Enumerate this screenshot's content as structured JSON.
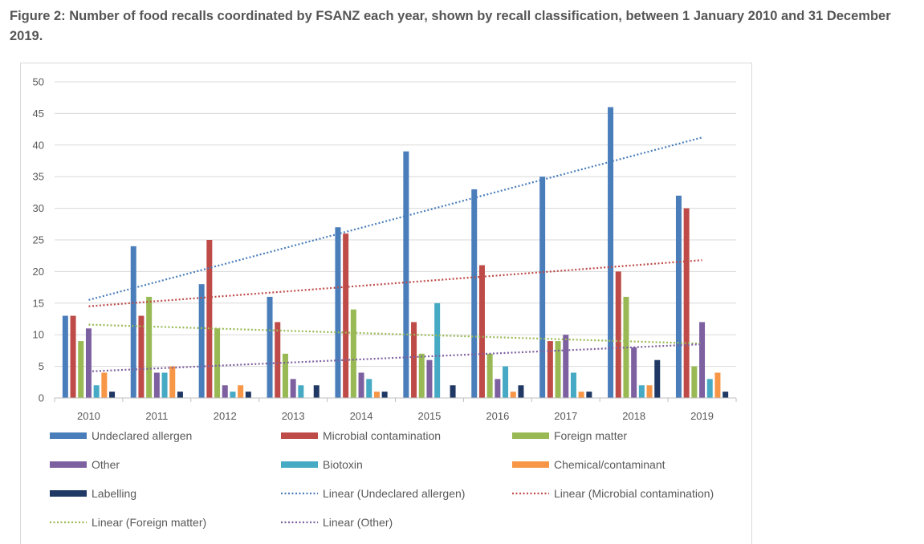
{
  "chart_data": {
    "type": "bar",
    "title": "Figure 2: Number of food recalls coordinated by FSANZ each year, shown by recall classification, between 1 January 2010 and 31 December 2019.",
    "xlabel": "",
    "ylabel": "",
    "ylim": [
      0,
      50
    ],
    "yticks": [
      0,
      5,
      10,
      15,
      20,
      25,
      30,
      35,
      40,
      45,
      50
    ],
    "grid": true,
    "legend_position": "bottom",
    "categories": [
      "2010",
      "2011",
      "2012",
      "2013",
      "2014",
      "2015",
      "2016",
      "2017",
      "2018",
      "2019"
    ],
    "series": [
      {
        "name": "Undeclared allergen",
        "color": "#4a7ebb",
        "values": [
          13,
          24,
          18,
          16,
          27,
          39,
          33,
          35,
          46,
          32
        ]
      },
      {
        "name": "Microbial contamination",
        "color": "#be4b48",
        "values": [
          13,
          13,
          25,
          12,
          26,
          12,
          21,
          9,
          20,
          30
        ]
      },
      {
        "name": "Foreign matter",
        "color": "#98b954",
        "values": [
          9,
          16,
          11,
          7,
          14,
          7,
          7,
          9,
          16,
          5
        ]
      },
      {
        "name": "Other",
        "color": "#7d60a0",
        "values": [
          11,
          4,
          2,
          3,
          4,
          6,
          3,
          10,
          8,
          12
        ]
      },
      {
        "name": "Biotoxin",
        "color": "#46aac4",
        "values": [
          2,
          4,
          1,
          2,
          3,
          15,
          5,
          4,
          2,
          3
        ]
      },
      {
        "name": "Chemical/contaminant",
        "color": "#f79646",
        "values": [
          4,
          5,
          2,
          0,
          1,
          0,
          1,
          1,
          2,
          4
        ]
      },
      {
        "name": "Labelling",
        "color": "#1f3864",
        "values": [
          1,
          1,
          1,
          2,
          1,
          2,
          2,
          1,
          6,
          1
        ]
      }
    ],
    "trendlines": [
      {
        "name": "Linear (Undeclared allergen)",
        "color": "#4a7ebb",
        "start": 15.5,
        "end": 41.2
      },
      {
        "name": "Linear (Microbial contamination)",
        "color": "#be4b48",
        "start": 14.5,
        "end": 21.8
      },
      {
        "name": "Linear (Foreign matter)",
        "color": "#98b954",
        "start": 11.6,
        "end": 8.6
      },
      {
        "name": "Linear (Other)",
        "color": "#7d60a0",
        "start": 4.2,
        "end": 8.5
      }
    ]
  }
}
